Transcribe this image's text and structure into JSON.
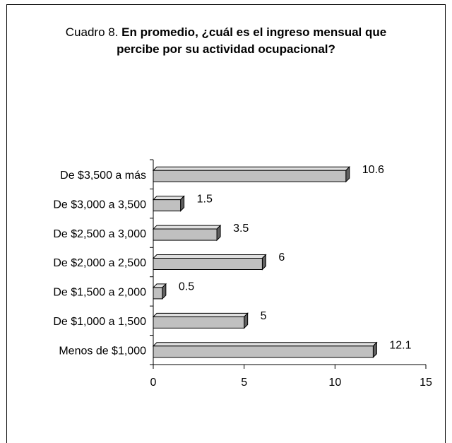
{
  "chart_data": {
    "type": "bar3d_horizontal",
    "title_prefix": "Cuadro 8.",
    "title": "En promedio, ¿cuál es el ingreso mensual que percibe por su actividad ocupacional?",
    "categories": [
      "De $3,500 a más",
      "De $3,000 a 3,500",
      "De $2,500 a 3,000",
      "De $2,000 a 2,500",
      "De $1,500 a 2,000",
      "De $1,000 a 1,500",
      "Menos de $1,000"
    ],
    "values": [
      10.6,
      1.5,
      3.5,
      6,
      0.5,
      5,
      12.1
    ],
    "color": "#c0c0c0",
    "xlim": [
      0,
      15
    ],
    "xticks": [
      0,
      5,
      10,
      15
    ]
  }
}
